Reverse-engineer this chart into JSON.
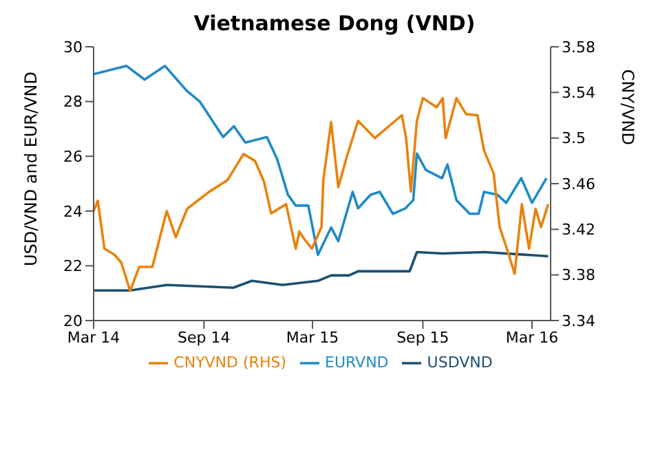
{
  "chart_data": {
    "type": "line",
    "title": "Vietnamese Dong (VND)",
    "ylabel": "USD/VND and EUR/VND",
    "y2label": "CNY/VND",
    "xlim": [
      "2014-03-01",
      "2016-04-01"
    ],
    "xticks": [
      {
        "value": "2014-03-01",
        "label": "Mar 14"
      },
      {
        "value": "2014-09-01",
        "label": "Sep 14"
      },
      {
        "value": "2015-03-01",
        "label": "Mar 15"
      },
      {
        "value": "2015-09-01",
        "label": "Sep 15"
      },
      {
        "value": "2016-03-01",
        "label": "Mar 16"
      }
    ],
    "ylim": [
      20,
      30
    ],
    "yticks": [
      20,
      22,
      24,
      26,
      28,
      30
    ],
    "y2lim": [
      3.34,
      3.58
    ],
    "y2ticks": [
      3.34,
      3.38,
      3.42,
      3.46,
      3.5,
      3.54,
      3.58
    ],
    "grid": false,
    "legend": "bottom",
    "marker": "none",
    "line_style": "solid",
    "series": [
      {
        "name": "USDVND",
        "color": "#1a4f72",
        "x": [
          "2014-03-01",
          "2014-05-01",
          "2014-07-01",
          "2014-10-20",
          "2014-11-20",
          "2015-01-10",
          "2015-03-10",
          "2015-04-01",
          "2015-05-01",
          "2015-05-16",
          "2015-08-10",
          "2015-08-22",
          "2015-10-04",
          "2015-12-12",
          "2016-03-28"
        ],
        "values": [
          21.1,
          21.1,
          21.3,
          21.2,
          21.45,
          21.3,
          21.45,
          21.65,
          21.65,
          21.8,
          21.8,
          22.5,
          22.45,
          22.5,
          22.35
        ]
      },
      {
        "name": "EURVND",
        "color": "#1f8ac8",
        "x": [
          "2014-03-01",
          "2014-04-25",
          "2014-05-25",
          "2014-06-28",
          "2014-08-03",
          "2014-08-25",
          "2014-09-15",
          "2014-10-03",
          "2014-10-21",
          "2014-11-09",
          "2014-12-15",
          "2015-01-01",
          "2015-01-19",
          "2015-02-01",
          "2015-02-22",
          "2015-03-10",
          "2015-04-01",
          "2015-04-13",
          "2015-05-07",
          "2015-05-16",
          "2015-06-06",
          "2015-06-21",
          "2015-07-13",
          "2015-08-03",
          "2015-08-16",
          "2015-08-22",
          "2015-09-06",
          "2015-10-03",
          "2015-10-12",
          "2015-10-27",
          "2015-11-18",
          "2015-12-03",
          "2015-12-12",
          "2016-01-03",
          "2016-01-18",
          "2016-02-12",
          "2016-03-01",
          "2016-03-25"
        ],
        "values": [
          29.0,
          29.3,
          28.8,
          29.3,
          28.4,
          28.0,
          27.3,
          26.7,
          27.1,
          26.5,
          26.7,
          25.9,
          24.6,
          24.2,
          24.2,
          22.4,
          23.4,
          22.9,
          24.7,
          24.1,
          24.6,
          24.7,
          23.9,
          24.1,
          24.4,
          26.1,
          25.5,
          25.2,
          25.7,
          24.4,
          23.9,
          23.9,
          24.7,
          24.6,
          24.3,
          25.2,
          24.3,
          25.2
        ]
      },
      {
        "name": "CNYVND (RHS)",
        "color": "#e8820c",
        "axis": "y2",
        "x": [
          "2014-03-01",
          "2014-03-08",
          "2014-03-19",
          "2014-04-04",
          "2014-04-16",
          "2014-05-01",
          "2014-05-16",
          "2014-06-07",
          "2014-06-22",
          "2014-07-01",
          "2014-07-16",
          "2014-08-04",
          "2014-09-10",
          "2014-10-10",
          "2014-11-06",
          "2014-11-25",
          "2014-12-10",
          "2014-12-22",
          "2015-01-16",
          "2015-02-01",
          "2015-02-07",
          "2015-02-16",
          "2015-02-28",
          "2015-03-16",
          "2015-03-19",
          "2015-04-01",
          "2015-04-13",
          "2015-04-28",
          "2015-05-16",
          "2015-06-13",
          "2015-07-28",
          "2015-08-04",
          "2015-08-12",
          "2015-08-22",
          "2015-09-01",
          "2015-09-24",
          "2015-10-04",
          "2015-10-09",
          "2015-10-27",
          "2015-11-12",
          "2015-12-01",
          "2015-12-12",
          "2015-12-28",
          "2016-01-07",
          "2016-01-19",
          "2016-02-01",
          "2016-02-13",
          "2016-02-25",
          "2016-03-07",
          "2016-03-16",
          "2016-03-28"
        ],
        "values": [
          3.436,
          3.445,
          3.403,
          3.398,
          3.391,
          3.366,
          3.387,
          3.387,
          3.418,
          3.436,
          3.413,
          3.438,
          3.453,
          3.463,
          3.486,
          3.48,
          3.462,
          3.434,
          3.442,
          3.403,
          3.418,
          3.411,
          3.403,
          3.422,
          3.463,
          3.514,
          3.457,
          3.485,
          3.515,
          3.5,
          3.52,
          3.5,
          3.453,
          3.515,
          3.535,
          3.527,
          3.535,
          3.5,
          3.535,
          3.521,
          3.52,
          3.489,
          3.469,
          3.422,
          3.403,
          3.381,
          3.442,
          3.403,
          3.438,
          3.422,
          3.442
        ]
      }
    ]
  }
}
